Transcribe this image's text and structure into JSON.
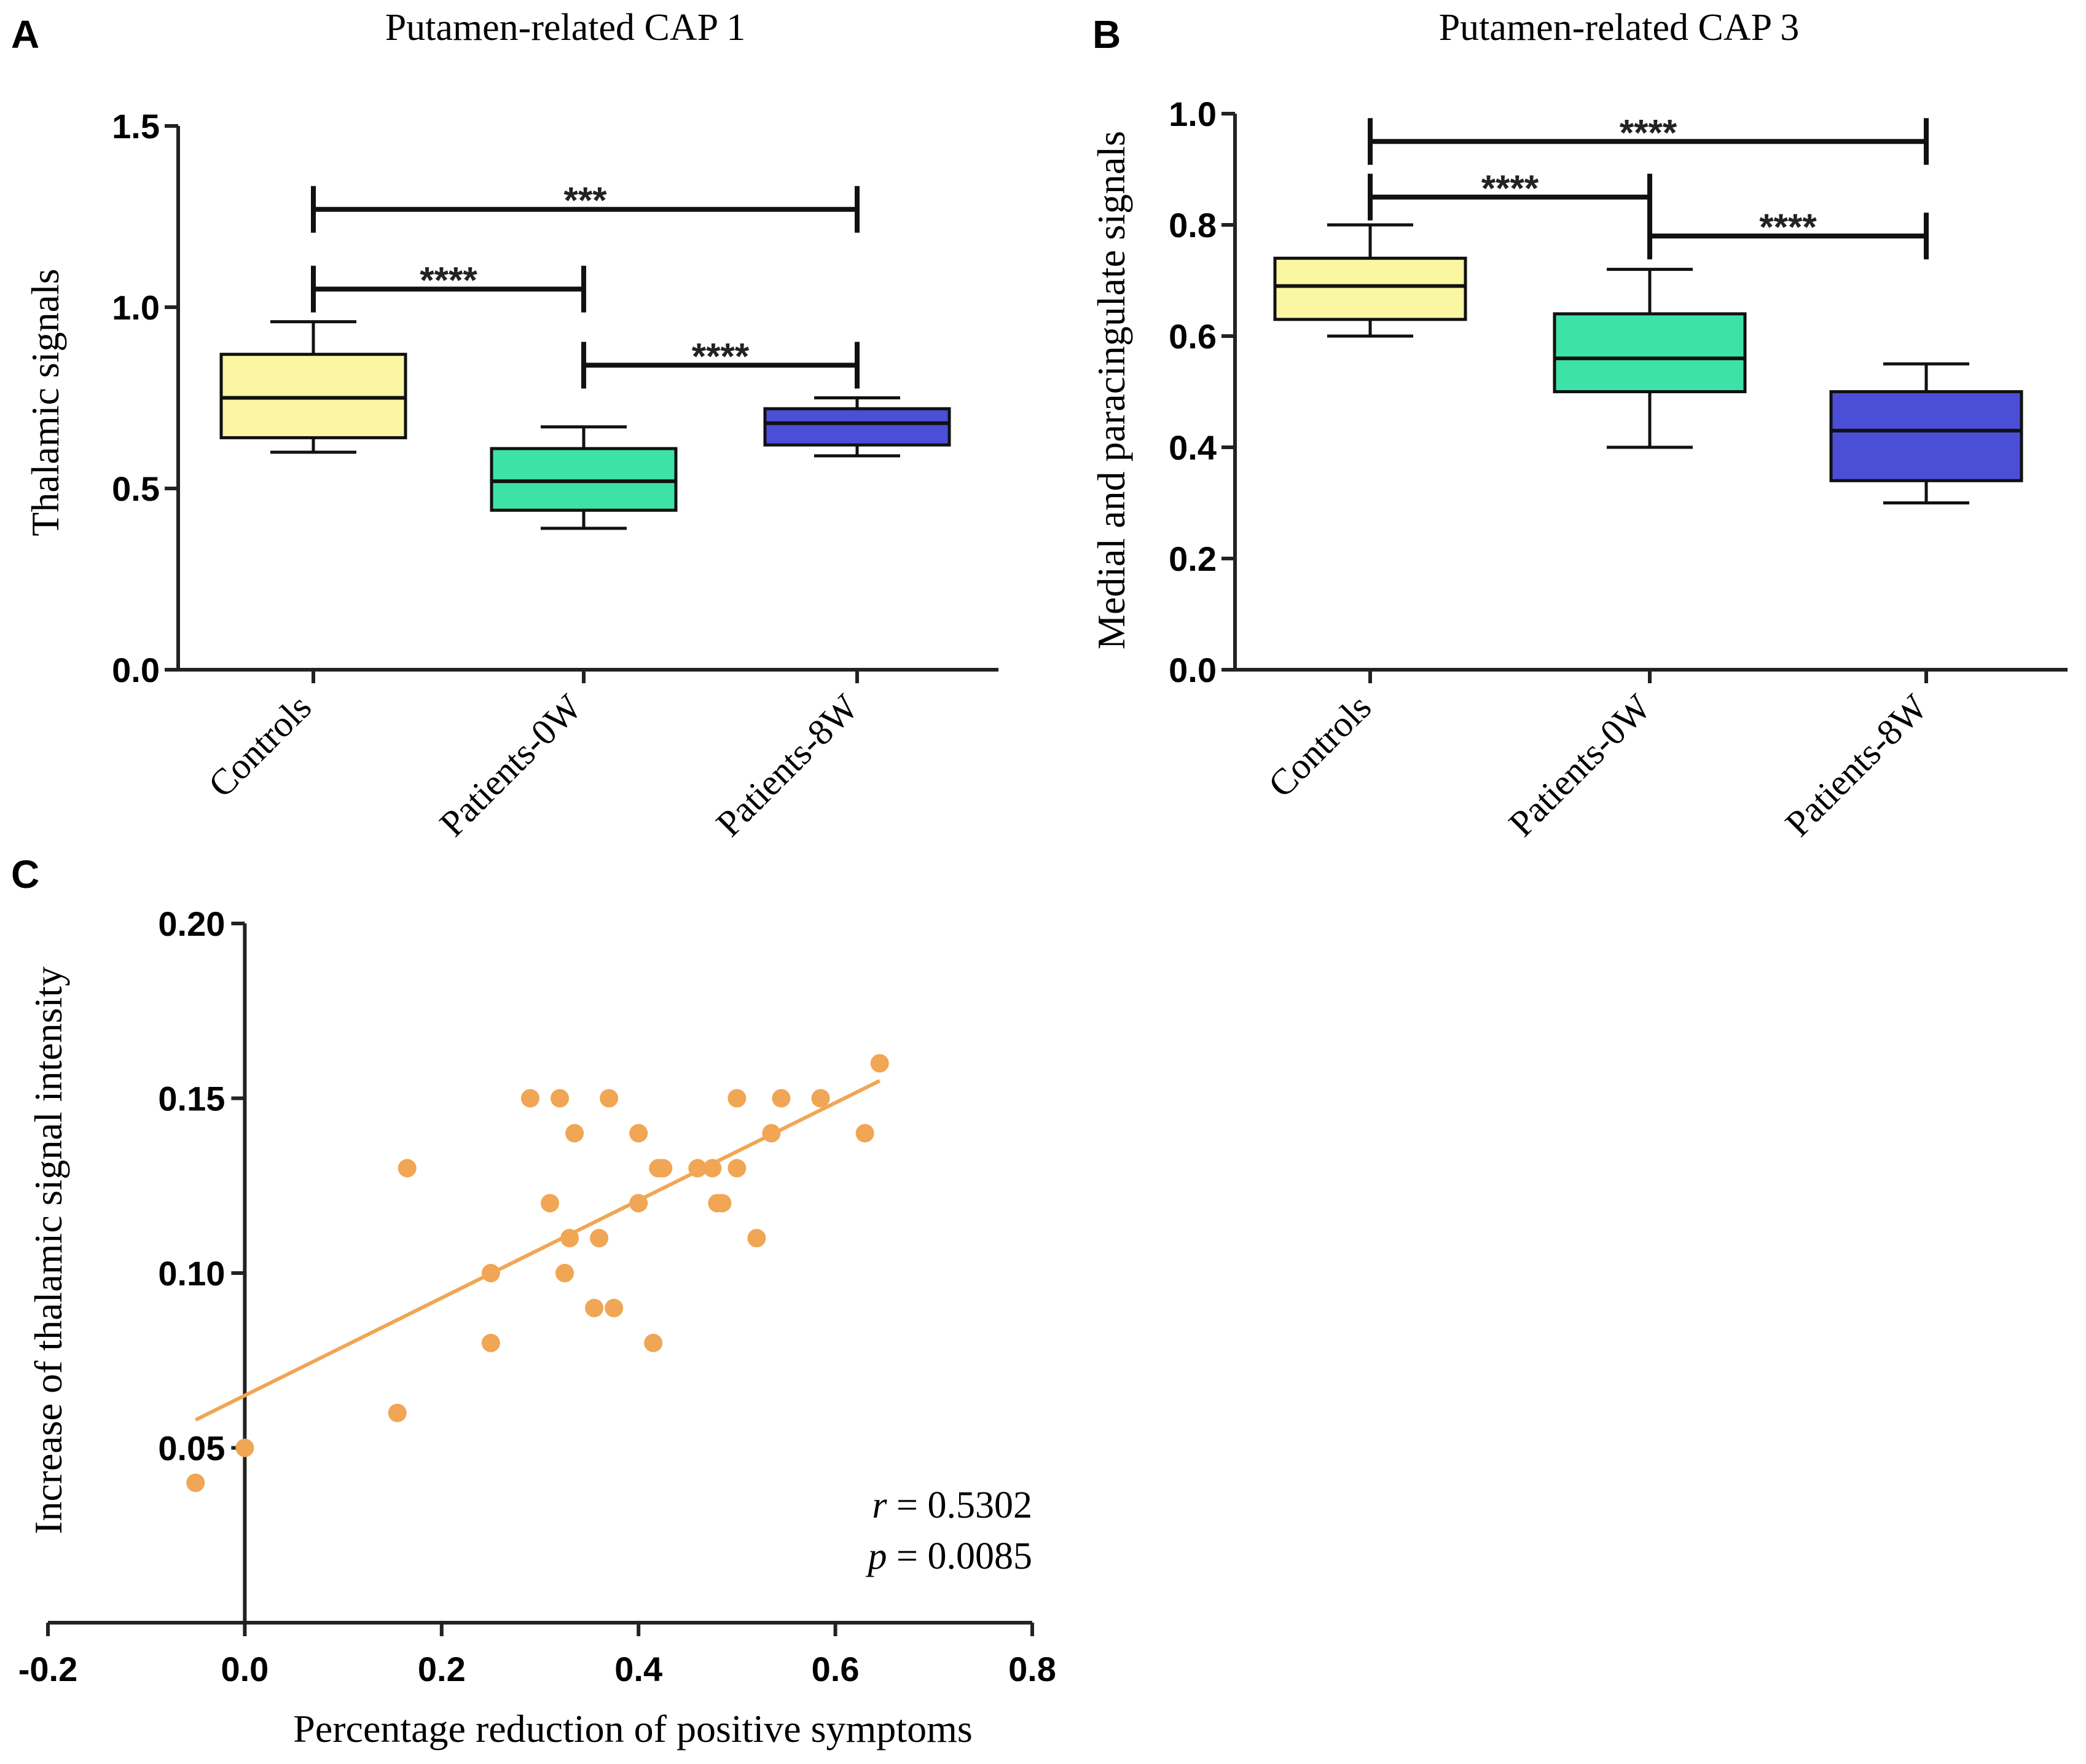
{
  "figure": {
    "panels": [
      {
        "letter": "A"
      },
      {
        "letter": "B"
      },
      {
        "letter": "C"
      }
    ]
  },
  "chart_data": [
    {
      "panel": "A",
      "type": "box",
      "title": "Putamen-related CAP 1",
      "ylabel": "Thalamic signals",
      "xlabel": "",
      "ylim": [
        0.0,
        1.5
      ],
      "yticks": [
        "0.0",
        "0.5",
        "1.0",
        "1.5"
      ],
      "yticks_values": [
        0.0,
        0.5,
        1.0,
        1.5
      ],
      "categories": [
        "Controls",
        "Patients-0W",
        "Patients-8W"
      ],
      "boxes": [
        {
          "name": "Controls",
          "min": 0.6,
          "q1": 0.64,
          "median": 0.75,
          "q3": 0.87,
          "max": 0.96,
          "color": "#fbf6a2"
        },
        {
          "name": "Patients-0W",
          "min": 0.39,
          "q1": 0.44,
          "median": 0.52,
          "q3": 0.61,
          "max": 0.67,
          "color": "#3de3a6"
        },
        {
          "name": "Patients-8W",
          "min": 0.59,
          "q1": 0.62,
          "median": 0.68,
          "q3": 0.72,
          "max": 0.75,
          "color": "#4b4ed6"
        }
      ],
      "significance": [
        {
          "from": 0,
          "to": 2,
          "y": 1.27,
          "label": "***"
        },
        {
          "from": 0,
          "to": 1,
          "y": 1.05,
          "label": "****"
        },
        {
          "from": 1,
          "to": 2,
          "y": 0.84,
          "label": "****"
        }
      ]
    },
    {
      "panel": "B",
      "type": "box",
      "title": "Putamen-related CAP 3",
      "ylabel": "Medial and paracingulate signals",
      "xlabel": "",
      "ylim": [
        0.0,
        1.0
      ],
      "yticks": [
        "0.0",
        "0.2",
        "0.4",
        "0.6",
        "0.8",
        "1.0"
      ],
      "yticks_values": [
        0.0,
        0.2,
        0.4,
        0.6,
        0.8,
        1.0
      ],
      "categories": [
        "Controls",
        "Patients-0W",
        "Patients-8W"
      ],
      "boxes": [
        {
          "name": "Controls",
          "min": 0.6,
          "q1": 0.63,
          "median": 0.69,
          "q3": 0.74,
          "max": 0.8,
          "color": "#fbf6a2"
        },
        {
          "name": "Patients-0W",
          "min": 0.4,
          "q1": 0.5,
          "median": 0.56,
          "q3": 0.64,
          "max": 0.72,
          "color": "#3de3a6"
        },
        {
          "name": "Patients-8W",
          "min": 0.3,
          "q1": 0.34,
          "median": 0.43,
          "q3": 0.5,
          "max": 0.55,
          "color": "#4b4ed6"
        }
      ],
      "significance": [
        {
          "from": 0,
          "to": 2,
          "y": 0.95,
          "label": "****"
        },
        {
          "from": 0,
          "to": 1,
          "y": 0.85,
          "label": "****"
        },
        {
          "from": 1,
          "to": 2,
          "y": 0.78,
          "label": "****"
        }
      ]
    },
    {
      "panel": "C",
      "type": "scatter",
      "title": "",
      "xlabel": "Percentage reduction of positive symptoms",
      "ylabel": "Increase of thalamic signal intensity",
      "xlim": [
        -0.2,
        0.8
      ],
      "ylim": [
        0.0,
        0.2
      ],
      "xticks": [
        "-0.2",
        "0.0",
        "0.2",
        "0.4",
        "0.6",
        "0.8"
      ],
      "xticks_values": [
        -0.2,
        0.0,
        0.2,
        0.4,
        0.6,
        0.8
      ],
      "yticks": [
        "0.05",
        "0.10",
        "0.15",
        "0.20"
      ],
      "yticks_values": [
        0.05,
        0.1,
        0.15,
        0.2
      ],
      "color": "#f0a654",
      "points": [
        [
          -0.05,
          0.04
        ],
        [
          0.0,
          0.05
        ],
        [
          0.155,
          0.06
        ],
        [
          0.165,
          0.13
        ],
        [
          0.25,
          0.1
        ],
        [
          0.25,
          0.08
        ],
        [
          0.29,
          0.15
        ],
        [
          0.31,
          0.12
        ],
        [
          0.32,
          0.15
        ],
        [
          0.325,
          0.1
        ],
        [
          0.33,
          0.11
        ],
        [
          0.335,
          0.14
        ],
        [
          0.355,
          0.09
        ],
        [
          0.36,
          0.11
        ],
        [
          0.37,
          0.15
        ],
        [
          0.375,
          0.09
        ],
        [
          0.4,
          0.14
        ],
        [
          0.4,
          0.12
        ],
        [
          0.415,
          0.08
        ],
        [
          0.42,
          0.13
        ],
        [
          0.425,
          0.13
        ],
        [
          0.46,
          0.13
        ],
        [
          0.475,
          0.13
        ],
        [
          0.48,
          0.12
        ],
        [
          0.485,
          0.12
        ],
        [
          0.5,
          0.15
        ],
        [
          0.5,
          0.13
        ],
        [
          0.52,
          0.11
        ],
        [
          0.535,
          0.14
        ],
        [
          0.545,
          0.15
        ],
        [
          0.585,
          0.15
        ],
        [
          0.63,
          0.14
        ],
        [
          0.645,
          0.16
        ]
      ],
      "fit": {
        "x": [
          -0.05,
          0.645
        ],
        "y": [
          0.058,
          0.155
        ]
      },
      "stats": {
        "r_symbol": "r",
        "r_text": " = 0.5302",
        "p_symbol": "p",
        "p_text": " = 0.0085"
      }
    }
  ]
}
